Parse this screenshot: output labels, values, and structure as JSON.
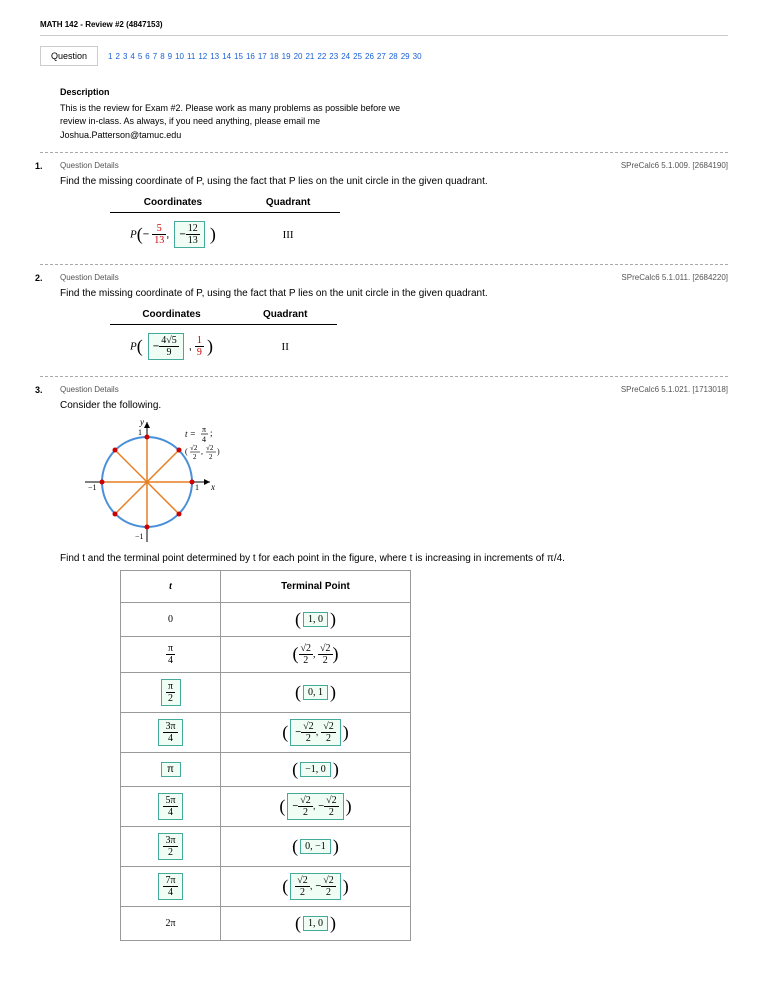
{
  "header": {
    "title": "MATH 142 - Review #2 (4847153)",
    "question_label": "Question"
  },
  "nav": {
    "links": [
      "1",
      "2",
      "3",
      "4",
      "5",
      "6",
      "7",
      "8",
      "9",
      "10",
      "11",
      "12",
      "13",
      "14",
      "15",
      "16",
      "17",
      "18",
      "19",
      "20",
      "21",
      "22",
      "23",
      "24",
      "25",
      "26",
      "27",
      "28",
      "29",
      "30"
    ]
  },
  "description": {
    "title": "Description",
    "line1": "This is the review for Exam #2. Please work as many problems as possible before we",
    "line2": "review in-class. As always, if you need anything, please email me",
    "email": "Joshua.Patterson@tamuc.edu"
  },
  "q1": {
    "num": "1.",
    "details": "Question Details",
    "ref": "SPreCalc6 5.1.009. [2684190]",
    "instruction": "Find the missing coordinate of P, using the fact that P lies on the unit circle in the given quadrant.",
    "col1": "Coordinates",
    "col2": "Quadrant",
    "x_num": "5",
    "x_den": "13",
    "ans_num": "12",
    "ans_den": "13",
    "quadrant": "III"
  },
  "q2": {
    "num": "2.",
    "details": "Question Details",
    "ref": "SPreCalc6 5.1.011. [2684220]",
    "instruction": "Find the missing coordinate of P, using the fact that P lies on the unit circle in the given quadrant.",
    "col1": "Coordinates",
    "col2": "Quadrant",
    "ans_num": "4√5",
    "ans_den": "9",
    "y_num": "1",
    "y_den": "9",
    "quadrant": "II"
  },
  "q3": {
    "num": "3.",
    "details": "Question Details",
    "ref": "SPreCalc6 5.1.021. [1713018]",
    "instr1": "Consider the following.",
    "t_label": "t = ",
    "pi4_num": "π",
    "pi4_den": "4",
    "point_label": "(√2/2, √2/2)",
    "instr2": "Find t and the terminal point determined by t for each point in the figure, where t is increasing in increments of π/4.",
    "thead_t": "t",
    "thead_tp": "Terminal Point",
    "rows": [
      {
        "t": "0",
        "tp": "1, 0",
        "t_is_answer": false
      },
      {
        "t_frac": {
          "num": "π",
          "den": "4"
        },
        "tp_raw": "(√2/2, √2/2)",
        "t_is_answer": false
      },
      {
        "t_ans_frac": {
          "num": "π",
          "den": "2"
        },
        "tp": "0, 1"
      },
      {
        "t_ans_frac": {
          "num": "3π",
          "den": "4"
        },
        "tp_complex": "neg_pos"
      },
      {
        "t_ans": "π",
        "tp": "−1, 0"
      },
      {
        "t_ans_frac": {
          "num": "5π",
          "den": "4"
        },
        "tp_complex": "neg_neg"
      },
      {
        "t_ans_frac": {
          "num": "3π",
          "den": "2"
        },
        "tp": "0, −1"
      },
      {
        "t_ans_frac": {
          "num": "7π",
          "den": "4"
        },
        "tp_complex": "pos_neg"
      },
      {
        "t": "2π",
        "tp": "1, 0",
        "t_is_answer": false
      }
    ]
  },
  "colors": {
    "answer_border": "#4a9",
    "answer_bg": "#f0fdf5",
    "link": "#1a5fd6",
    "circle_stroke": "#4a90d9",
    "radius_stroke": "#e67e22"
  }
}
